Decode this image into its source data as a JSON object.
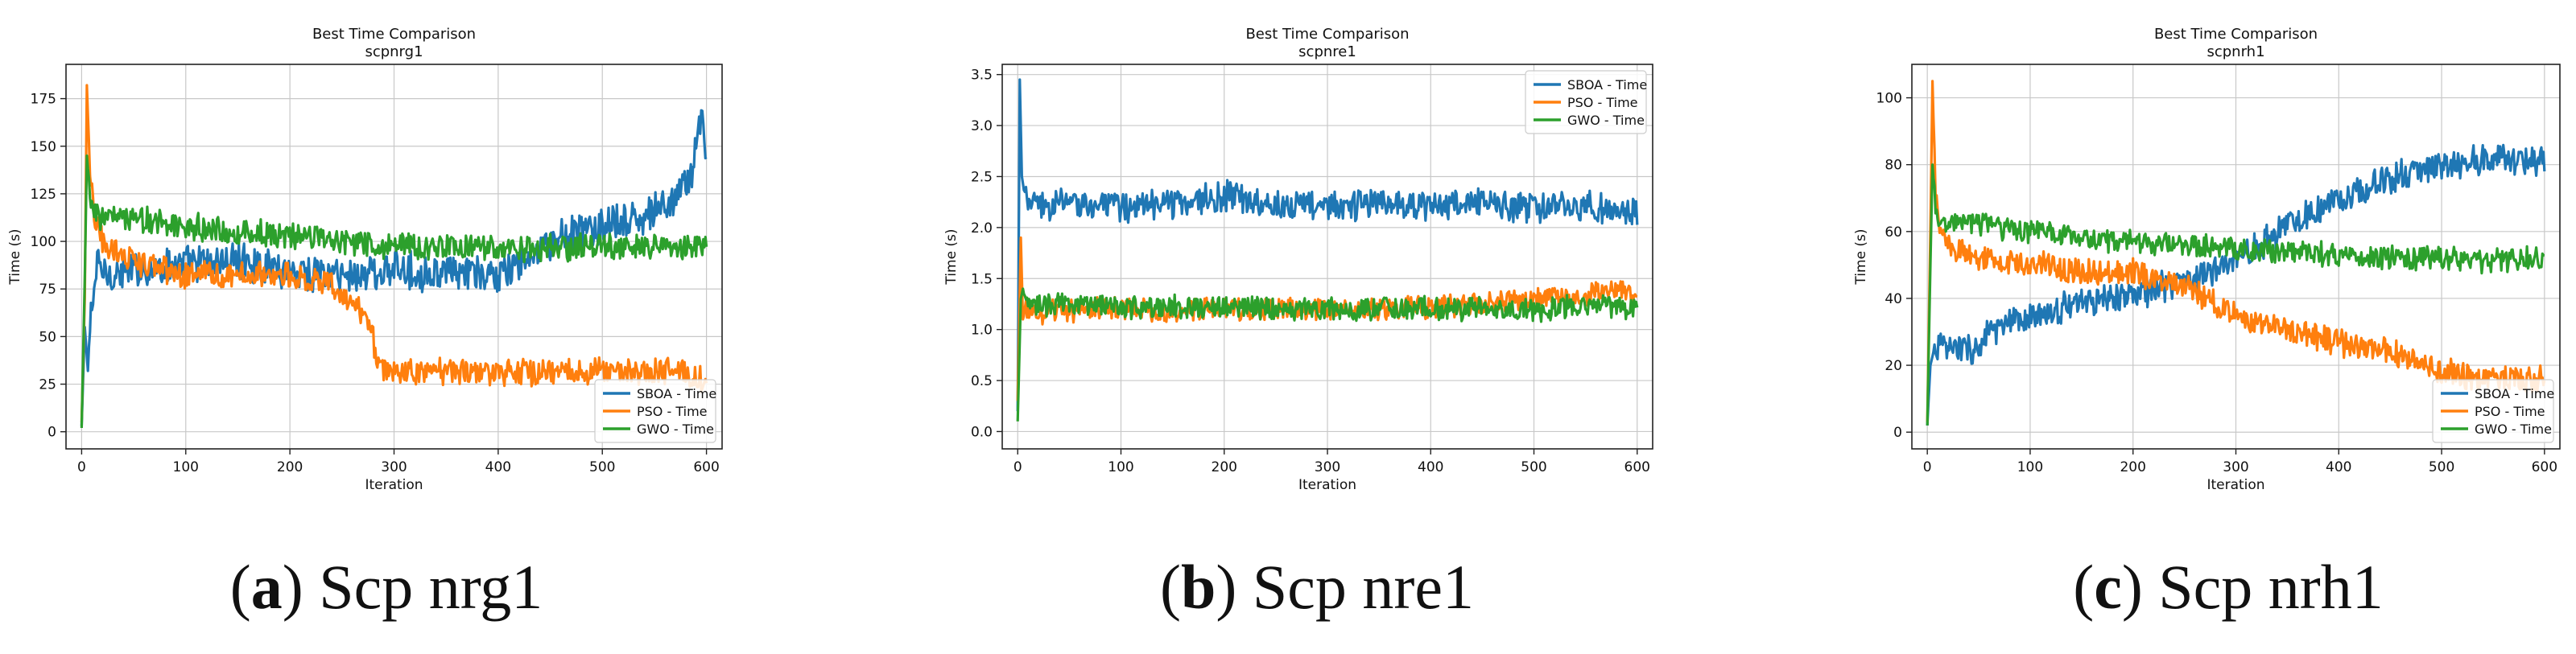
{
  "colors": {
    "SBOA": "#1f77b4",
    "PSO": "#ff7f0e",
    "GWO": "#2ca02c",
    "grid": "#b0b0b0"
  },
  "captions": [
    {
      "letter": "a",
      "text": "Scp nrg1"
    },
    {
      "letter": "b",
      "text": "Scp nre1"
    },
    {
      "letter": "c",
      "text": "Scp nrh1"
    }
  ],
  "chart_data": [
    {
      "type": "line",
      "title": "Best Time Comparison",
      "subtitle": "scpnrg1",
      "xlabel": "Iteration",
      "ylabel": "Time (s)",
      "xlim": [
        -15,
        615
      ],
      "ylim": [
        -9,
        193
      ],
      "xticks": [
        0,
        100,
        200,
        300,
        400,
        500,
        600
      ],
      "yticks": [
        0,
        25,
        50,
        75,
        100,
        125,
        150,
        175
      ],
      "grid": true,
      "legend": "bottom-right",
      "series": [
        {
          "name": "SBOA - Time",
          "color": "#1f77b4",
          "x": [
            0,
            3,
            6,
            9,
            15,
            25,
            50,
            100,
            150,
            200,
            250,
            300,
            350,
            400,
            430,
            460,
            500,
            540,
            570,
            585,
            595,
            600
          ],
          "y": [
            3,
            55,
            32,
            62,
            88,
            82,
            85,
            88,
            90,
            85,
            82,
            85,
            83,
            82,
            90,
            102,
            108,
            112,
            122,
            135,
            165,
            150
          ]
        },
        {
          "name": "PSO - Time",
          "color": "#ff7f0e",
          "x": [
            0,
            3,
            5,
            8,
            12,
            20,
            40,
            60,
            100,
            150,
            200,
            240,
            260,
            278,
            285,
            300,
            350,
            400,
            450,
            500,
            550,
            580,
            590,
            600
          ],
          "y": [
            5,
            70,
            182,
            135,
            112,
            100,
            92,
            88,
            82,
            83,
            82,
            78,
            68,
            55,
            33,
            32,
            31,
            31,
            31,
            32,
            32,
            31,
            27,
            28
          ]
        },
        {
          "name": "GWO - Time",
          "color": "#2ca02c",
          "x": [
            0,
            3,
            5,
            8,
            12,
            20,
            50,
            100,
            150,
            200,
            250,
            300,
            350,
            400,
            450,
            500,
            550,
            600
          ],
          "y": [
            2,
            80,
            145,
            125,
            115,
            112,
            112,
            108,
            105,
            103,
            100,
            98,
            97,
            96,
            96,
            97,
            97,
            97
          ]
        }
      ]
    },
    {
      "type": "line",
      "title": "Best Time Comparison",
      "subtitle": "scpnre1",
      "xlabel": "Iteration",
      "ylabel": "Time (s)",
      "xlim": [
        -15,
        615
      ],
      "ylim": [
        -0.17,
        3.6
      ],
      "xticks": [
        0,
        100,
        200,
        300,
        400,
        500,
        600
      ],
      "yticks": [
        0.0,
        0.5,
        1.0,
        1.5,
        2.0,
        2.5,
        3.0,
        3.5
      ],
      "grid": true,
      "legend": "top-right",
      "series": [
        {
          "name": "SBOA - Time",
          "color": "#1f77b4",
          "x": [
            0,
            2,
            4,
            7,
            12,
            20,
            50,
            100,
            150,
            200,
            250,
            300,
            350,
            400,
            450,
            500,
            550,
            600
          ],
          "y": [
            0.2,
            3.45,
            2.5,
            2.3,
            2.25,
            2.2,
            2.25,
            2.2,
            2.25,
            2.3,
            2.25,
            2.2,
            2.25,
            2.2,
            2.25,
            2.2,
            2.2,
            2.15
          ]
        },
        {
          "name": "PSO - Time",
          "color": "#ff7f0e",
          "x": [
            0,
            3,
            5,
            8,
            15,
            50,
            100,
            150,
            200,
            250,
            300,
            350,
            400,
            450,
            500,
            550,
            580,
            600
          ],
          "y": [
            0.3,
            1.9,
            1.1,
            1.2,
            1.15,
            1.18,
            1.2,
            1.18,
            1.2,
            1.2,
            1.2,
            1.2,
            1.22,
            1.25,
            1.3,
            1.35,
            1.4,
            1.35
          ]
        },
        {
          "name": "GWO - Time",
          "color": "#2ca02c",
          "x": [
            0,
            3,
            5,
            8,
            15,
            50,
            100,
            150,
            200,
            250,
            300,
            350,
            400,
            450,
            500,
            550,
            600
          ],
          "y": [
            0.1,
            1.3,
            1.4,
            1.25,
            1.25,
            1.25,
            1.22,
            1.22,
            1.22,
            1.2,
            1.2,
            1.2,
            1.22,
            1.2,
            1.18,
            1.25,
            1.2
          ]
        }
      ]
    },
    {
      "type": "line",
      "title": "Best Time Comparison",
      "subtitle": "scpnrh1",
      "xlabel": "Iteration",
      "ylabel": "Time (s)",
      "xlim": [
        -15,
        615
      ],
      "ylim": [
        -5,
        110
      ],
      "xticks": [
        0,
        100,
        200,
        300,
        400,
        500,
        600
      ],
      "yticks": [
        0,
        20,
        40,
        60,
        80,
        100
      ],
      "grid": true,
      "legend": "bottom-right",
      "series": [
        {
          "name": "SBOA - Time",
          "color": "#1f77b4",
          "x": [
            0,
            3,
            6,
            10,
            20,
            50,
            60,
            100,
            150,
            200,
            250,
            300,
            350,
            400,
            450,
            500,
            550,
            600
          ],
          "y": [
            2,
            20,
            24,
            26,
            25,
            25,
            30,
            34,
            39,
            41,
            45,
            51,
            62,
            70,
            76,
            80,
            82,
            81
          ]
        },
        {
          "name": "PSO - Time",
          "color": "#ff7f0e",
          "x": [
            0,
            3,
            5,
            8,
            12,
            20,
            50,
            100,
            150,
            200,
            250,
            300,
            350,
            400,
            450,
            500,
            550,
            600
          ],
          "y": [
            3,
            60,
            105,
            72,
            60,
            56,
            52,
            50,
            48,
            48,
            44,
            35,
            30,
            27,
            24,
            18,
            16,
            16
          ]
        },
        {
          "name": "GWO - Time",
          "color": "#2ca02c",
          "x": [
            0,
            3,
            5,
            8,
            12,
            20,
            50,
            100,
            150,
            200,
            250,
            300,
            350,
            400,
            450,
            500,
            550,
            600
          ],
          "y": [
            2,
            50,
            80,
            68,
            63,
            63,
            62,
            60,
            58,
            57,
            56,
            55,
            54,
            53,
            52,
            52,
            51,
            52
          ]
        }
      ]
    }
  ]
}
